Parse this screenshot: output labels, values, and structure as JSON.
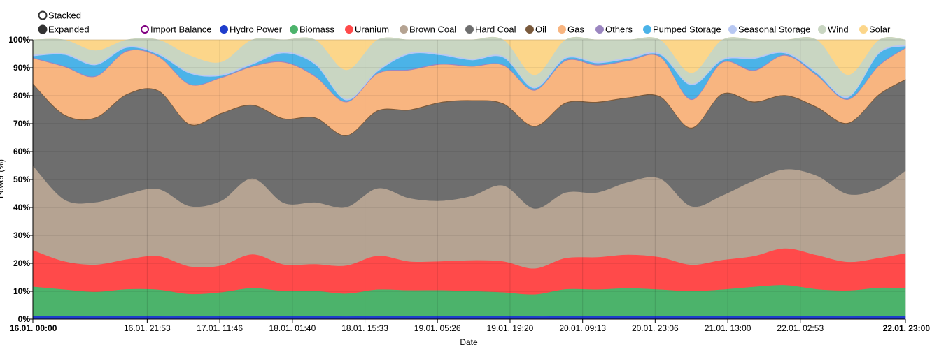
{
  "chart_data": {
    "type": "area",
    "mode": "expanded",
    "title": "",
    "xlabel": "Date",
    "ylabel": "Power (%)",
    "ylim": [
      0,
      100
    ],
    "y_ticks": [
      "0%",
      "10%",
      "20%",
      "30%",
      "40%",
      "50%",
      "60%",
      "70%",
      "80%",
      "90%",
      "100%"
    ],
    "x_ticks": [
      {
        "label": "16.01. 00:00",
        "h": 0,
        "bold": true
      },
      {
        "label": "16.01. 21:53",
        "h": 21.88
      },
      {
        "label": "17.01. 11:46",
        "h": 35.77
      },
      {
        "label": "18.01. 01:40",
        "h": 49.67
      },
      {
        "label": "18.01. 15:33",
        "h": 63.55
      },
      {
        "label": "19.01. 05:26",
        "h": 77.43
      },
      {
        "label": "19.01. 19:20",
        "h": 91.33
      },
      {
        "label": "20.01. 09:13",
        "h": 105.22
      },
      {
        "label": "20.01. 23:06",
        "h": 119.1
      },
      {
        "label": "21.01. 13:00",
        "h": 133.0
      },
      {
        "label": "22.01. 02:53",
        "h": 146.88
      },
      {
        "label": "22.01. 23:00",
        "h": 167,
        "bold": true
      }
    ],
    "mode_options": [
      {
        "label": "Stacked",
        "selected": false
      },
      {
        "label": "Expanded",
        "selected": true
      }
    ],
    "colors": {
      "import_balance": "#800080",
      "hydro_power": "#1f3dcc",
      "biomass": "#4cb36b",
      "uranium": "#ff4a4a",
      "brown_coal": "#b5a392",
      "hard_coal": "#6e6e6e",
      "oil": "#7a5a3c",
      "gas": "#f8b580",
      "others": "#9b86c0",
      "pumped_storage": "#4bb3e8",
      "seasonal_storage": "#b8c8f2",
      "wind": "#c9d6c2",
      "solar": "#fcd68a"
    },
    "legend": [
      {
        "key": "import_balance",
        "label": "Import Balance",
        "hollow": true
      },
      {
        "key": "hydro_power",
        "label": "Hydro Power"
      },
      {
        "key": "biomass",
        "label": "Biomass"
      },
      {
        "key": "uranium",
        "label": "Uranium"
      },
      {
        "key": "brown_coal",
        "label": "Brown Coal"
      },
      {
        "key": "hard_coal",
        "label": "Hard Coal"
      },
      {
        "key": "oil",
        "label": "Oil"
      },
      {
        "key": "gas",
        "label": "Gas"
      },
      {
        "key": "others",
        "label": "Others"
      },
      {
        "key": "pumped_storage",
        "label": "Pumped Storage"
      },
      {
        "key": "seasonal_storage",
        "label": "Seasonal Storage"
      },
      {
        "key": "wind",
        "label": "Wind"
      },
      {
        "key": "solar",
        "label": "Solar"
      }
    ],
    "x_hours": [
      0,
      6,
      12,
      18,
      24,
      30,
      36,
      42,
      48,
      54,
      60,
      66,
      72,
      78,
      84,
      90,
      96,
      102,
      108,
      114,
      120,
      126,
      132,
      138,
      144,
      150,
      156,
      162,
      167
    ],
    "series": [
      {
        "key": "hydro_power",
        "name": "Hydro Power",
        "values": [
          1,
          1,
          1,
          1,
          1,
          1,
          1,
          1,
          1,
          1,
          1,
          1,
          1,
          1,
          1,
          1,
          1,
          1,
          1,
          1,
          1,
          1,
          1,
          1,
          1,
          1,
          1,
          1,
          1
        ]
      },
      {
        "key": "biomass",
        "name": "Biomass",
        "values": [
          10.5,
          9.5,
          9,
          9.5,
          9.5,
          8.5,
          8.5,
          10,
          9,
          9,
          9,
          9.5,
          8.5,
          9,
          9,
          8.5,
          8,
          9,
          9.5,
          10,
          9.5,
          9,
          9.5,
          10.5,
          11,
          9.5,
          9.5,
          10,
          10
        ]
      },
      {
        "key": "uranium",
        "name": "Uranium",
        "values": [
          13,
          10,
          10,
          10.5,
          12,
          10.5,
          9.5,
          12,
          9.5,
          9.5,
          11,
          12,
          9.5,
          10,
          11,
          11,
          9.5,
          10.5,
          11.5,
          12,
          11.5,
          9.5,
          10.5,
          11,
          13,
          12,
          10.5,
          10.5,
          12.5
        ]
      },
      {
        "key": "brown_coal",
        "name": "Brown Coal",
        "values": [
          30,
          22,
          23,
          23,
          24,
          23,
          23,
          27,
          22,
          22,
          23,
          24,
          21,
          21,
          23,
          27,
          22,
          22,
          23,
          26,
          28,
          21,
          23,
          27,
          28,
          28,
          25,
          24.5,
          29.5
        ]
      },
      {
        "key": "hard_coal",
        "name": "Hard Coal",
        "values": [
          29,
          30,
          31,
          35,
          35,
          31,
          31,
          26,
          30,
          30,
          28,
          27.5,
          29,
          34,
          34,
          29,
          30,
          30,
          32,
          30,
          29,
          28,
          36,
          28,
          26,
          24,
          26,
          33,
          32.5
        ]
      },
      {
        "key": "oil",
        "name": "Oil",
        "values": [
          0.3,
          0.3,
          0.3,
          0.3,
          0.3,
          0.3,
          0.3,
          0.3,
          0.3,
          0.3,
          0.3,
          0.3,
          0.3,
          0.3,
          0.3,
          0.3,
          0.3,
          0.3,
          0.3,
          0.3,
          0.3,
          0.3,
          0.3,
          0.3,
          0.3,
          0.3,
          0.3,
          0.3,
          0.3
        ]
      },
      {
        "key": "gas",
        "name": "Gas",
        "values": [
          9,
          17,
          15,
          15,
          12,
          15,
          12.5,
          13.5,
          20,
          14.5,
          13,
          13,
          13,
          13,
          12,
          13.5,
          13,
          14,
          13,
          13,
          14,
          10,
          11,
          11,
          14,
          11,
          8.5,
          10,
          11
        ]
      },
      {
        "key": "others",
        "name": "Others",
        "values": [
          0.3,
          0.3,
          0.3,
          0.3,
          0.3,
          0.3,
          0.3,
          0.3,
          0.3,
          0.3,
          0.3,
          0.3,
          0.3,
          0.3,
          0.3,
          0.3,
          0.3,
          0.3,
          0.3,
          0.3,
          0.3,
          0.3,
          0.3,
          0.3,
          0.3,
          0.3,
          0.3,
          0.3,
          0.3
        ]
      },
      {
        "key": "pumped_storage",
        "name": "Pumped Storage",
        "values": [
          0.5,
          4,
          4,
          1,
          0.5,
          4,
          0.5,
          0.5,
          3,
          4,
          0.5,
          0.5,
          5,
          3,
          2,
          2.5,
          0.5,
          0.5,
          0.5,
          0.5,
          0.5,
          5,
          0.5,
          4,
          0.5,
          0.5,
          0.5,
          4,
          0.5
        ]
      },
      {
        "key": "seasonal_storage",
        "name": "Seasonal Storage",
        "values": [
          0.5,
          0.5,
          0.5,
          0.5,
          0.5,
          0.5,
          0.5,
          0.5,
          0.5,
          0.5,
          0.5,
          0.5,
          0.5,
          0.5,
          0.5,
          0.5,
          0.5,
          0.5,
          0.5,
          0.5,
          0.5,
          0.5,
          0.5,
          0.5,
          0.5,
          0.5,
          0.5,
          0.5,
          0.5
        ]
      },
      {
        "key": "wind",
        "name": "Wind",
        "values": [
          5.4,
          4.9,
          4.9,
          2.4,
          4.9,
          6.4,
          4.4,
          8.4,
          4.4,
          8.4,
          11.4,
          10.9,
          4.4,
          4.9,
          6.9,
          5.9,
          4.4,
          5.9,
          7.9,
          6.4,
          4.9,
          3.9,
          6.9,
          6.4,
          4.4,
          11.4,
          7.9,
          4.4,
          1.9
        ]
      },
      {
        "key": "solar",
        "name": "Solar",
        "values": [
          0,
          0,
          4,
          0,
          0,
          6,
          8,
          0,
          0,
          0,
          12,
          0,
          0,
          0,
          0,
          0,
          13,
          0,
          0,
          0,
          0,
          12,
          0,
          0,
          0,
          0,
          13,
          0,
          0
        ]
      }
    ]
  }
}
